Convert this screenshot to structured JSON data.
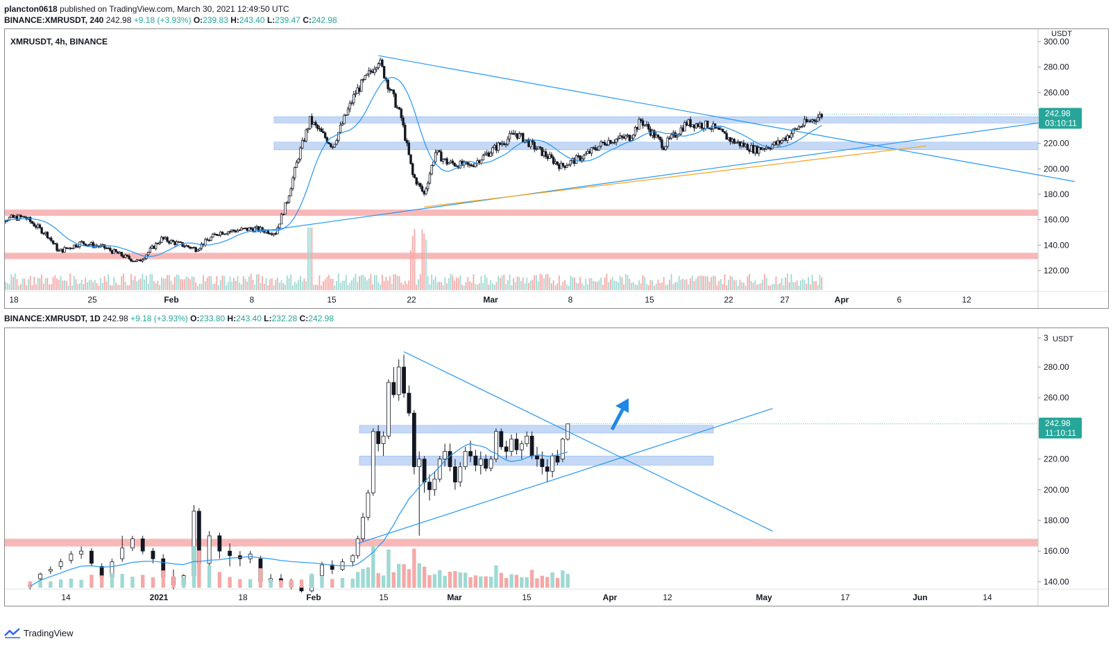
{
  "header": {
    "publisher": "plancton0618",
    "published_text": "published on TradingView.com, March 30, 2021 12:49:50 UTC"
  },
  "top": {
    "symbol_line": {
      "symbol": "BINANCE:XMRUSDT, 240",
      "last": "242.98",
      "change": "+9.18 (+3.93%)",
      "o_label": "O:",
      "o": "239.83",
      "h_label": "H:",
      "h": "243.40",
      "l_label": "L:",
      "l": "239.47",
      "c_label": "C:",
      "c": "242.98"
    },
    "pane_title": "XMRUSDT, 4h, BINANCE",
    "currency": "USDT",
    "price_tag": "242.98",
    "countdown": "03:10:11"
  },
  "bottom": {
    "symbol_line": {
      "symbol": "BINANCE:XMRUSDT, 1D",
      "last": "242.98",
      "change": "+9.18 (+3.93%)",
      "o_label": "O:",
      "o": "233.80",
      "h_label": "H:",
      "h": "243.40",
      "l_label": "L:",
      "l": "232.28",
      "c_label": "C:",
      "c": "242.98"
    },
    "currency": "USDT",
    "price_tag": "242.98",
    "countdown": "11:10:11"
  },
  "footer": {
    "brand": "TradingView"
  },
  "colors": {
    "up": "#26a69a",
    "down": "#ef5350",
    "candle_body_up": "#ffffff",
    "candle_body_down": "#131722",
    "ma": "#2196f3",
    "trendline": "#2196f3",
    "orange_line": "#f7a21b",
    "resistance_zone_blue": "#bbd2f5",
    "support_zone_red": "#f8b4b4",
    "vol_up": "#9fd9d3",
    "vol_down": "#f4a9a7",
    "price_tag_bg": "#26a69a"
  },
  "chart_data": [
    {
      "type": "candlestick",
      "pane": "top",
      "timeframe": "4h",
      "x_tick_labels": [
        "18",
        "25",
        "Feb",
        "8",
        "15",
        "22",
        "Mar",
        "8",
        "15",
        "22",
        "27",
        "Apr",
        "6",
        "12"
      ],
      "y_tick_labels": [
        "300.00",
        "280.00",
        "260.00",
        "240.00",
        "220.00",
        "200.00",
        "180.00",
        "160.00",
        "140.00",
        "120.00"
      ],
      "ylim": [
        110,
        303
      ],
      "close_path": [
        {
          "date": "Jan 16",
          "close": 160
        },
        {
          "date": "Jan 19",
          "close": 162
        },
        {
          "date": "Jan 21",
          "close": 148
        },
        {
          "date": "Jan 22",
          "close": 135
        },
        {
          "date": "Jan 24",
          "close": 142
        },
        {
          "date": "Jan 26",
          "close": 138
        },
        {
          "date": "Jan 28",
          "close": 130
        },
        {
          "date": "Jan 29",
          "close": 127
        },
        {
          "date": "Jan 31",
          "close": 145
        },
        {
          "date": "Feb 3",
          "close": 137
        },
        {
          "date": "Feb 5",
          "close": 150
        },
        {
          "date": "Feb 8",
          "close": 153
        },
        {
          "date": "Feb 10",
          "close": 150
        },
        {
          "date": "Feb 11",
          "close": 175
        },
        {
          "date": "Feb 12",
          "close": 210
        },
        {
          "date": "Feb 13",
          "close": 238
        },
        {
          "date": "Feb 15",
          "close": 218
        },
        {
          "date": "Feb 17",
          "close": 260
        },
        {
          "date": "Feb 18",
          "close": 272
        },
        {
          "date": "Feb 19",
          "close": 286
        },
        {
          "date": "Feb 20",
          "close": 263
        },
        {
          "date": "Feb 21",
          "close": 240
        },
        {
          "date": "Feb 22",
          "close": 195
        },
        {
          "date": "Feb 23",
          "close": 180
        },
        {
          "date": "Feb 24",
          "close": 213
        },
        {
          "date": "Feb 25",
          "close": 205
        },
        {
          "date": "Feb 27",
          "close": 202
        },
        {
          "date": "Mar 1",
          "close": 215
        },
        {
          "date": "Mar 3",
          "close": 228
        },
        {
          "date": "Mar 5",
          "close": 215
        },
        {
          "date": "Mar 7",
          "close": 202
        },
        {
          "date": "Mar 9",
          "close": 210
        },
        {
          "date": "Mar 11",
          "close": 222
        },
        {
          "date": "Mar 13",
          "close": 225
        },
        {
          "date": "Mar 14",
          "close": 238
        },
        {
          "date": "Mar 16",
          "close": 218
        },
        {
          "date": "Mar 18",
          "close": 236
        },
        {
          "date": "Mar 20",
          "close": 234
        },
        {
          "date": "Mar 22",
          "close": 222
        },
        {
          "date": "Mar 24",
          "close": 215
        },
        {
          "date": "Mar 26",
          "close": 220
        },
        {
          "date": "Mar 28",
          "close": 234
        },
        {
          "date": "Mar 30",
          "close": 243
        }
      ],
      "moving_average": "blue line following price",
      "horizontal_zones": [
        {
          "name": "resistance",
          "low": 236,
          "high": 241
        },
        {
          "name": "support",
          "low": 215,
          "high": 221
        },
        {
          "name": "red-zone-upper",
          "low": 163,
          "high": 168
        },
        {
          "name": "red-zone-lower",
          "low": 129,
          "high": 134
        }
      ],
      "trendlines": [
        {
          "name": "descending-triangle-top",
          "from": {
            "date": "Feb 19",
            "price": 289
          },
          "to": {
            "date": "Apr 21",
            "price": 190
          }
        },
        {
          "name": "ascending-support",
          "from": {
            "date": "Feb 8",
            "price": 150
          },
          "to": {
            "date": "Apr 21",
            "price": 240
          }
        },
        {
          "name": "orange-support",
          "from": {
            "date": "Feb 23",
            "price": 170
          },
          "to": {
            "date": "Apr 8",
            "price": 218
          }
        }
      ],
      "last_price": 242.98
    },
    {
      "type": "candlestick",
      "pane": "bottom",
      "timeframe": "1D",
      "x_tick_labels": [
        "14",
        "2021",
        "18",
        "Feb",
        "15",
        "Mar",
        "15",
        "Apr",
        "12",
        "May",
        "17",
        "Jun",
        "14"
      ],
      "y_tick_labels": [
        "3",
        "280.00",
        "260.00",
        "240.00",
        "220.00",
        "200.00",
        "180.00",
        "160.00",
        "140.00"
      ],
      "ylim": [
        137,
        299
      ],
      "candles": [
        {
          "date": "Dec 7",
          "open": 138,
          "high": 140,
          "low": 135,
          "close": 137
        },
        {
          "date": "Dec 9",
          "open": 142,
          "high": 146,
          "low": 140,
          "close": 145
        },
        {
          "date": "Dec 11",
          "open": 147,
          "high": 150,
          "low": 145,
          "close": 148
        },
        {
          "date": "Dec 13",
          "open": 150,
          "high": 155,
          "low": 148,
          "close": 153
        },
        {
          "date": "Dec 15",
          "open": 154,
          "high": 160,
          "low": 152,
          "close": 158
        },
        {
          "date": "Dec 17",
          "open": 158,
          "high": 163,
          "low": 155,
          "close": 160
        },
        {
          "date": "Dec 19",
          "open": 160,
          "high": 162,
          "low": 150,
          "close": 152
        },
        {
          "date": "Dec 21",
          "open": 150,
          "high": 152,
          "low": 140,
          "close": 143
        },
        {
          "date": "Dec 23",
          "open": 143,
          "high": 155,
          "low": 141,
          "close": 153
        },
        {
          "date": "Dec 25",
          "open": 155,
          "high": 170,
          "low": 153,
          "close": 162
        },
        {
          "date": "Dec 27",
          "open": 162,
          "high": 170,
          "low": 160,
          "close": 168
        },
        {
          "date": "Dec 29",
          "open": 168,
          "high": 170,
          "low": 158,
          "close": 160
        },
        {
          "date": "Dec 31",
          "open": 160,
          "high": 162,
          "low": 152,
          "close": 155
        },
        {
          "date": "Jan 2",
          "open": 155,
          "high": 158,
          "low": 140,
          "close": 143
        },
        {
          "date": "Jan 4",
          "open": 143,
          "high": 148,
          "low": 135,
          "close": 138
        },
        {
          "date": "Jan 6",
          "open": 138,
          "high": 145,
          "low": 136,
          "close": 144
        },
        {
          "date": "Jan 8",
          "open": 144,
          "high": 190,
          "low": 142,
          "close": 186
        },
        {
          "date": "Jan 9",
          "open": 186,
          "high": 188,
          "low": 150,
          "close": 152
        },
        {
          "date": "Jan 11",
          "open": 152,
          "high": 173,
          "low": 150,
          "close": 170
        },
        {
          "date": "Jan 13",
          "open": 170,
          "high": 172,
          "low": 155,
          "close": 160
        },
        {
          "date": "Jan 15",
          "open": 160,
          "high": 165,
          "low": 150,
          "close": 157
        },
        {
          "date": "Jan 17",
          "open": 157,
          "high": 160,
          "low": 150,
          "close": 155
        },
        {
          "date": "Jan 19",
          "open": 155,
          "high": 160,
          "low": 152,
          "close": 158
        },
        {
          "date": "Jan 21",
          "open": 155,
          "high": 157,
          "low": 138,
          "close": 140
        },
        {
          "date": "Jan 23",
          "open": 140,
          "high": 145,
          "low": 138,
          "close": 142
        },
        {
          "date": "Jan 25",
          "open": 142,
          "high": 145,
          "low": 138,
          "close": 140
        },
        {
          "date": "Jan 27",
          "open": 140,
          "high": 142,
          "low": 135,
          "close": 137
        },
        {
          "date": "Jan 29",
          "open": 137,
          "high": 140,
          "low": 133,
          "close": 134
        },
        {
          "date": "Jan 31",
          "open": 134,
          "high": 145,
          "low": 133,
          "close": 144
        },
        {
          "date": "Feb 2",
          "open": 144,
          "high": 153,
          "low": 142,
          "close": 151
        },
        {
          "date": "Feb 4",
          "open": 151,
          "high": 154,
          "low": 145,
          "close": 148
        },
        {
          "date": "Feb 6",
          "open": 148,
          "high": 155,
          "low": 147,
          "close": 153
        },
        {
          "date": "Feb 8",
          "open": 153,
          "high": 158,
          "low": 150,
          "close": 157
        },
        {
          "date": "Feb 9",
          "open": 157,
          "high": 170,
          "low": 155,
          "close": 168
        },
        {
          "date": "Feb 10",
          "open": 168,
          "high": 185,
          "low": 166,
          "close": 182
        },
        {
          "date": "Feb 11",
          "open": 182,
          "high": 200,
          "low": 180,
          "close": 198
        },
        {
          "date": "Feb 12",
          "open": 198,
          "high": 240,
          "low": 196,
          "close": 238
        },
        {
          "date": "Feb 13",
          "open": 238,
          "high": 242,
          "low": 225,
          "close": 230
        },
        {
          "date": "Feb 14",
          "open": 230,
          "high": 238,
          "low": 222,
          "close": 235
        },
        {
          "date": "Feb 15",
          "open": 235,
          "high": 272,
          "low": 233,
          "close": 270
        },
        {
          "date": "Feb 16",
          "open": 270,
          "high": 280,
          "low": 260,
          "close": 262
        },
        {
          "date": "Feb 17",
          "open": 262,
          "high": 285,
          "low": 258,
          "close": 280
        },
        {
          "date": "Feb 18",
          "open": 280,
          "high": 288,
          "low": 260,
          "close": 263
        },
        {
          "date": "Feb 19",
          "open": 263,
          "high": 268,
          "low": 248,
          "close": 250
        },
        {
          "date": "Feb 20",
          "open": 250,
          "high": 252,
          "low": 210,
          "close": 215
        },
        {
          "date": "Feb 21",
          "open": 215,
          "high": 225,
          "low": 170,
          "close": 220
        },
        {
          "date": "Feb 22",
          "open": 220,
          "high": 222,
          "low": 198,
          "close": 205
        },
        {
          "date": "Feb 23",
          "open": 205,
          "high": 210,
          "low": 193,
          "close": 200
        },
        {
          "date": "Feb 24",
          "open": 200,
          "high": 212,
          "low": 196,
          "close": 207
        },
        {
          "date": "Feb 25",
          "open": 207,
          "high": 222,
          "low": 205,
          "close": 220
        },
        {
          "date": "Feb 26",
          "open": 220,
          "high": 230,
          "low": 215,
          "close": 225
        },
        {
          "date": "Feb 27",
          "open": 225,
          "high": 230,
          "low": 212,
          "close": 215
        },
        {
          "date": "Feb 28",
          "open": 215,
          "high": 220,
          "low": 200,
          "close": 205
        },
        {
          "date": "Mar 1",
          "open": 205,
          "high": 218,
          "low": 202,
          "close": 215
        },
        {
          "date": "Mar 2",
          "open": 215,
          "high": 228,
          "low": 213,
          "close": 225
        },
        {
          "date": "Mar 3",
          "open": 225,
          "high": 232,
          "low": 218,
          "close": 222
        },
        {
          "date": "Mar 4",
          "open": 222,
          "high": 226,
          "low": 212,
          "close": 216
        },
        {
          "date": "Mar 5",
          "open": 216,
          "high": 225,
          "low": 210,
          "close": 220
        },
        {
          "date": "Mar 6",
          "open": 220,
          "high": 223,
          "low": 212,
          "close": 214
        },
        {
          "date": "Mar 7",
          "open": 214,
          "high": 222,
          "low": 212,
          "close": 220
        },
        {
          "date": "Mar 8",
          "open": 220,
          "high": 240,
          "low": 218,
          "close": 238
        },
        {
          "date": "Mar 9",
          "open": 238,
          "high": 240,
          "low": 226,
          "close": 228
        },
        {
          "date": "Mar 10",
          "open": 228,
          "high": 232,
          "low": 220,
          "close": 225
        },
        {
          "date": "Mar 11",
          "open": 225,
          "high": 236,
          "low": 222,
          "close": 233
        },
        {
          "date": "Mar 12",
          "open": 233,
          "high": 237,
          "low": 223,
          "close": 226
        },
        {
          "date": "Mar 13",
          "open": 226,
          "high": 232,
          "low": 220,
          "close": 230
        },
        {
          "date": "Mar 14",
          "open": 230,
          "high": 238,
          "low": 228,
          "close": 235
        },
        {
          "date": "Mar 15",
          "open": 235,
          "high": 238,
          "low": 220,
          "close": 222
        },
        {
          "date": "Mar 16",
          "open": 222,
          "high": 228,
          "low": 215,
          "close": 220
        },
        {
          "date": "Mar 17",
          "open": 220,
          "high": 225,
          "low": 210,
          "close": 215
        },
        {
          "date": "Mar 18",
          "open": 215,
          "high": 220,
          "low": 205,
          "close": 212
        },
        {
          "date": "Mar 19",
          "open": 212,
          "high": 224,
          "low": 208,
          "close": 222
        },
        {
          "date": "Mar 20",
          "open": 222,
          "high": 226,
          "low": 216,
          "close": 218
        },
        {
          "date": "Mar 21",
          "open": 220,
          "high": 234,
          "low": 218,
          "close": 233
        },
        {
          "date": "Mar 22",
          "open": 233,
          "high": 243,
          "low": 232,
          "close": 243
        }
      ],
      "moving_average": "blue line following price",
      "horizontal_zones": [
        {
          "name": "resistance",
          "low": 237,
          "high": 242
        },
        {
          "name": "support",
          "low": 216,
          "high": 222
        },
        {
          "name": "red-zone",
          "low": 163,
          "high": 168
        }
      ],
      "trendlines": [
        {
          "name": "descending-triangle-top",
          "from": {
            "date": "Feb 18",
            "price": 290
          },
          "to": {
            "date": "May 1",
            "price": 173
          }
        },
        {
          "name": "ascending-support",
          "from": {
            "date": "Feb 9",
            "price": 165
          },
          "to": {
            "date": "May 1",
            "price": 253
          }
        }
      ],
      "annotation": "blue arrow pointing up-right",
      "last_price": 242.98
    }
  ]
}
